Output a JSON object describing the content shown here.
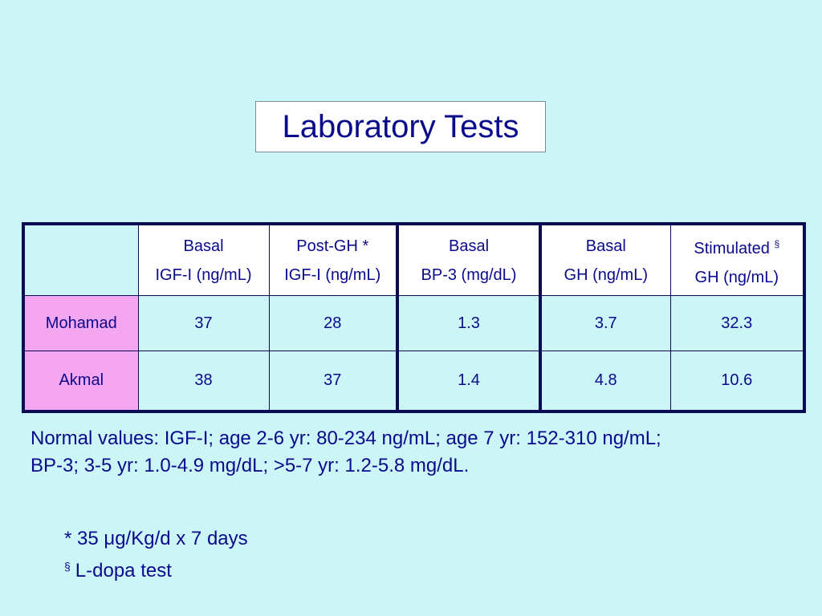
{
  "title": "Laboratory Tests",
  "table": {
    "headers": [
      {
        "line1": "Basal",
        "line2": "IGF-I (ng/mL)",
        "mark": ""
      },
      {
        "line1": "Post-GH *",
        "line2": "IGF-I (ng/mL)",
        "mark": ""
      },
      {
        "line1": "Basal",
        "line2": "BP-3 (mg/dL)",
        "mark": ""
      },
      {
        "line1": "Basal",
        "line2": "GH (ng/mL)",
        "mark": ""
      },
      {
        "line1": "Stimulated",
        "line2": "GH (ng/mL)",
        "mark": "§"
      }
    ],
    "rows": [
      {
        "name": "Mohamad",
        "values": [
          "37",
          "28",
          "1.3",
          "3.7",
          "32.3"
        ]
      },
      {
        "name": "Akmal",
        "values": [
          "38",
          "37",
          "1.4",
          "4.8",
          "10.6"
        ]
      }
    ]
  },
  "normal_values": {
    "line1": "Normal values: IGF-I; age 2-6 yr: 80-234 ng/mL; age 7 yr: 152-310 ng/mL;",
    "line2": "BP-3; 3-5 yr: 1.0-4.9 mg/dL; >5-7 yr: 1.2-5.8 mg/dL."
  },
  "footnotes": {
    "star": "* 35 μg/Kg/d x 7 days",
    "section_symbol": "§",
    "section_text": "L-dopa test"
  },
  "colors": {
    "background": "#ccf5f7",
    "text": "#0a0a8c",
    "row_header_fill": "#f5a6f0",
    "table_border": "#0b0b55"
  }
}
